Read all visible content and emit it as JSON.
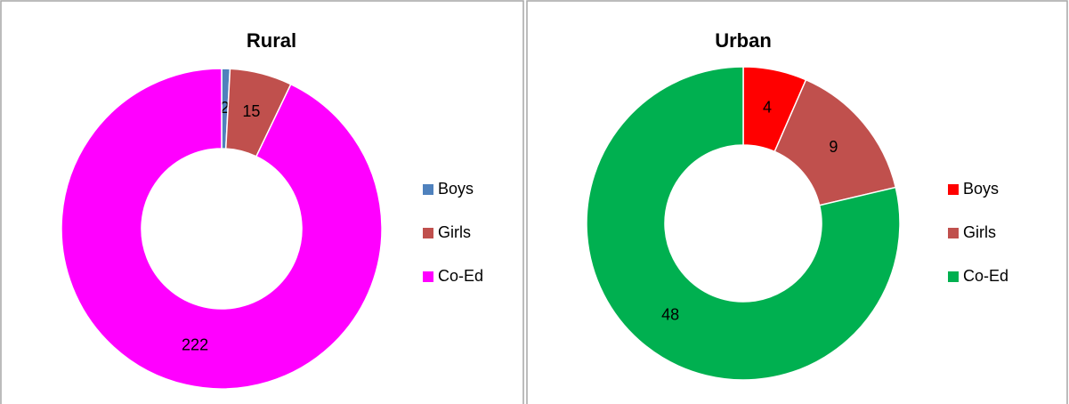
{
  "chart_data": [
    {
      "type": "pie",
      "donut": true,
      "title": "Rural",
      "categories": [
        "Boys",
        "Girls",
        "Co-Ed"
      ],
      "values": [
        2,
        15,
        222
      ],
      "colors": [
        "#4f81bd",
        "#c0504d",
        "#ff00ff"
      ],
      "legend": "right"
    },
    {
      "type": "pie",
      "donut": true,
      "title": "Urban",
      "categories": [
        "Boys",
        "Girls",
        "Co-Ed"
      ],
      "values": [
        4,
        9,
        48
      ],
      "colors": [
        "#ff0000",
        "#c0504d",
        "#00b050"
      ],
      "legend": "right"
    }
  ]
}
